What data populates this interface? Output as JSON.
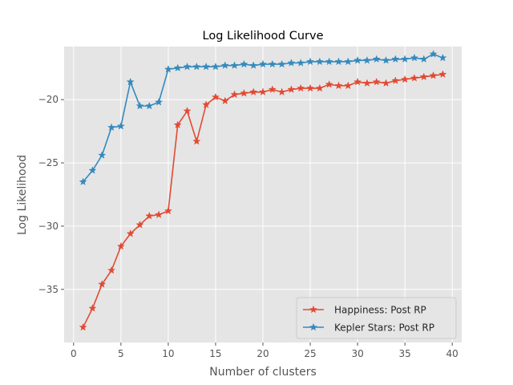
{
  "chart_data": {
    "type": "line",
    "title": "Log Likelihood Curve",
    "xlabel": "Number of clusters",
    "ylabel": "Log Likelihood",
    "xlim": [
      -1,
      41
    ],
    "ylim": [
      -39.2,
      -15.8
    ],
    "xticks": [
      0,
      5,
      10,
      15,
      20,
      25,
      30,
      35,
      40
    ],
    "yticks": [
      -35,
      -30,
      -25,
      -20
    ],
    "grid": true,
    "legend_position": "lower-right",
    "marker": "star",
    "colors": {
      "background": "#e5e5e5",
      "grid": "#ffffff"
    },
    "series": [
      {
        "name": "Happiness: Post RP",
        "color": "#e24a33",
        "x": [
          1,
          2,
          3,
          4,
          5,
          6,
          7,
          8,
          9,
          10,
          11,
          12,
          13,
          14,
          15,
          16,
          17,
          18,
          19,
          20,
          21,
          22,
          23,
          24,
          25,
          26,
          27,
          28,
          29,
          30,
          31,
          32,
          33,
          34,
          35,
          36,
          37,
          38,
          39
        ],
        "y": [
          -38.0,
          -36.5,
          -34.6,
          -33.5,
          -31.6,
          -30.6,
          -29.9,
          -29.2,
          -29.1,
          -28.8,
          -22.0,
          -20.9,
          -23.3,
          -20.4,
          -19.8,
          -20.1,
          -19.6,
          -19.5,
          -19.4,
          -19.4,
          -19.2,
          -19.4,
          -19.2,
          -19.1,
          -19.1,
          -19.1,
          -18.8,
          -18.9,
          -18.9,
          -18.6,
          -18.7,
          -18.6,
          -18.7,
          -18.5,
          -18.4,
          -18.3,
          -18.2,
          -18.1,
          -18.0
        ]
      },
      {
        "name": "Kepler Stars: Post RP",
        "color": "#348abd",
        "x": [
          1,
          2,
          3,
          4,
          5,
          6,
          7,
          8,
          9,
          10,
          11,
          12,
          13,
          14,
          15,
          16,
          17,
          18,
          19,
          20,
          21,
          22,
          23,
          24,
          25,
          26,
          27,
          28,
          29,
          30,
          31,
          32,
          33,
          34,
          35,
          36,
          37,
          38,
          39
        ],
        "y": [
          -26.5,
          -25.6,
          -24.4,
          -22.2,
          -22.1,
          -18.6,
          -20.5,
          -20.5,
          -20.2,
          -17.6,
          -17.5,
          -17.4,
          -17.4,
          -17.4,
          -17.4,
          -17.3,
          -17.3,
          -17.2,
          -17.3,
          -17.2,
          -17.2,
          -17.2,
          -17.1,
          -17.1,
          -17.0,
          -17.0,
          -17.0,
          -17.0,
          -17.0,
          -16.9,
          -16.9,
          -16.8,
          -16.9,
          -16.8,
          -16.8,
          -16.7,
          -16.8,
          -16.4,
          -16.7
        ]
      }
    ]
  }
}
